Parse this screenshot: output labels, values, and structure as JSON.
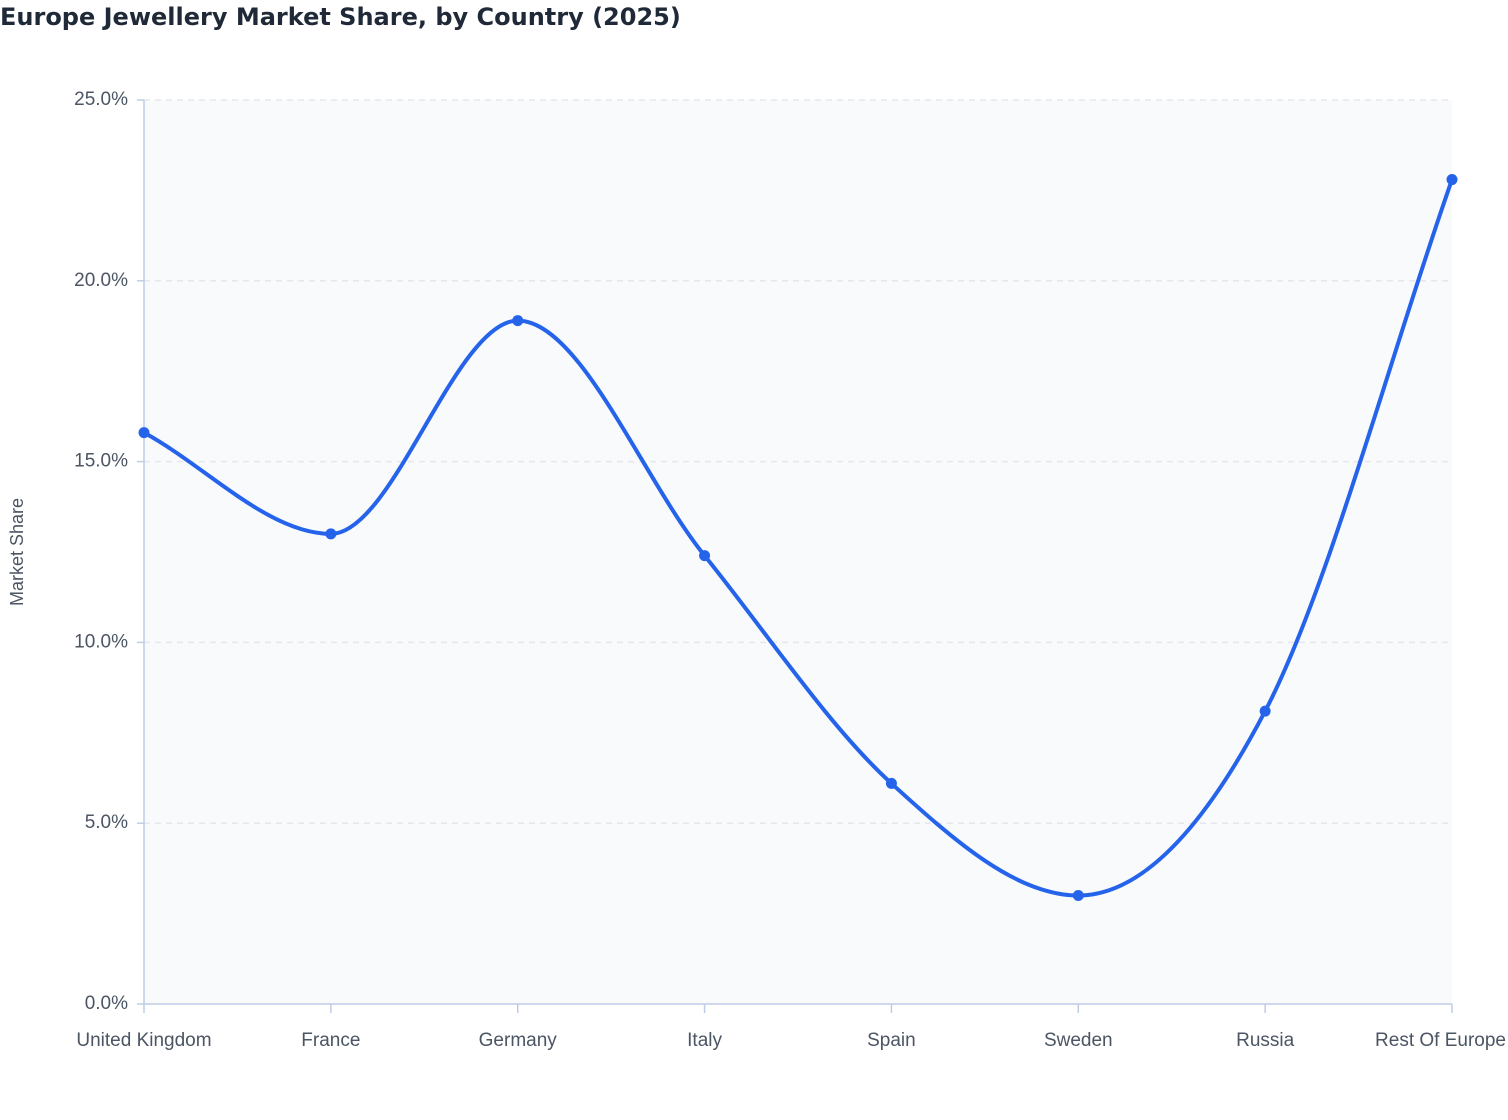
{
  "chart_data": {
    "type": "line",
    "title": "Europe Jewellery Market Share, by Country (2025)",
    "xlabel": "",
    "ylabel": "Market Share",
    "categories": [
      "United Kingdom",
      "France",
      "Germany",
      "Italy",
      "Spain",
      "Sweden",
      "Russia",
      "Rest Of Europe"
    ],
    "series": [
      {
        "values": [
          15.8,
          13.0,
          18.9,
          12.4,
          6.1,
          3.0,
          8.1,
          22.8
        ]
      }
    ],
    "ylim": [
      0,
      25
    ],
    "yticks": [
      0,
      5,
      10,
      15,
      20,
      25
    ],
    "ytick_labels": [
      "0.0%",
      "5.0%",
      "10.0%",
      "15.0%",
      "20.0%",
      "25.0%"
    ],
    "grid": true,
    "smooth": true,
    "colors": {
      "line": "#2563eb",
      "plot_background": "#f8fafc",
      "grid": "#e5e7eb",
      "axis": "#bfcce6"
    }
  }
}
